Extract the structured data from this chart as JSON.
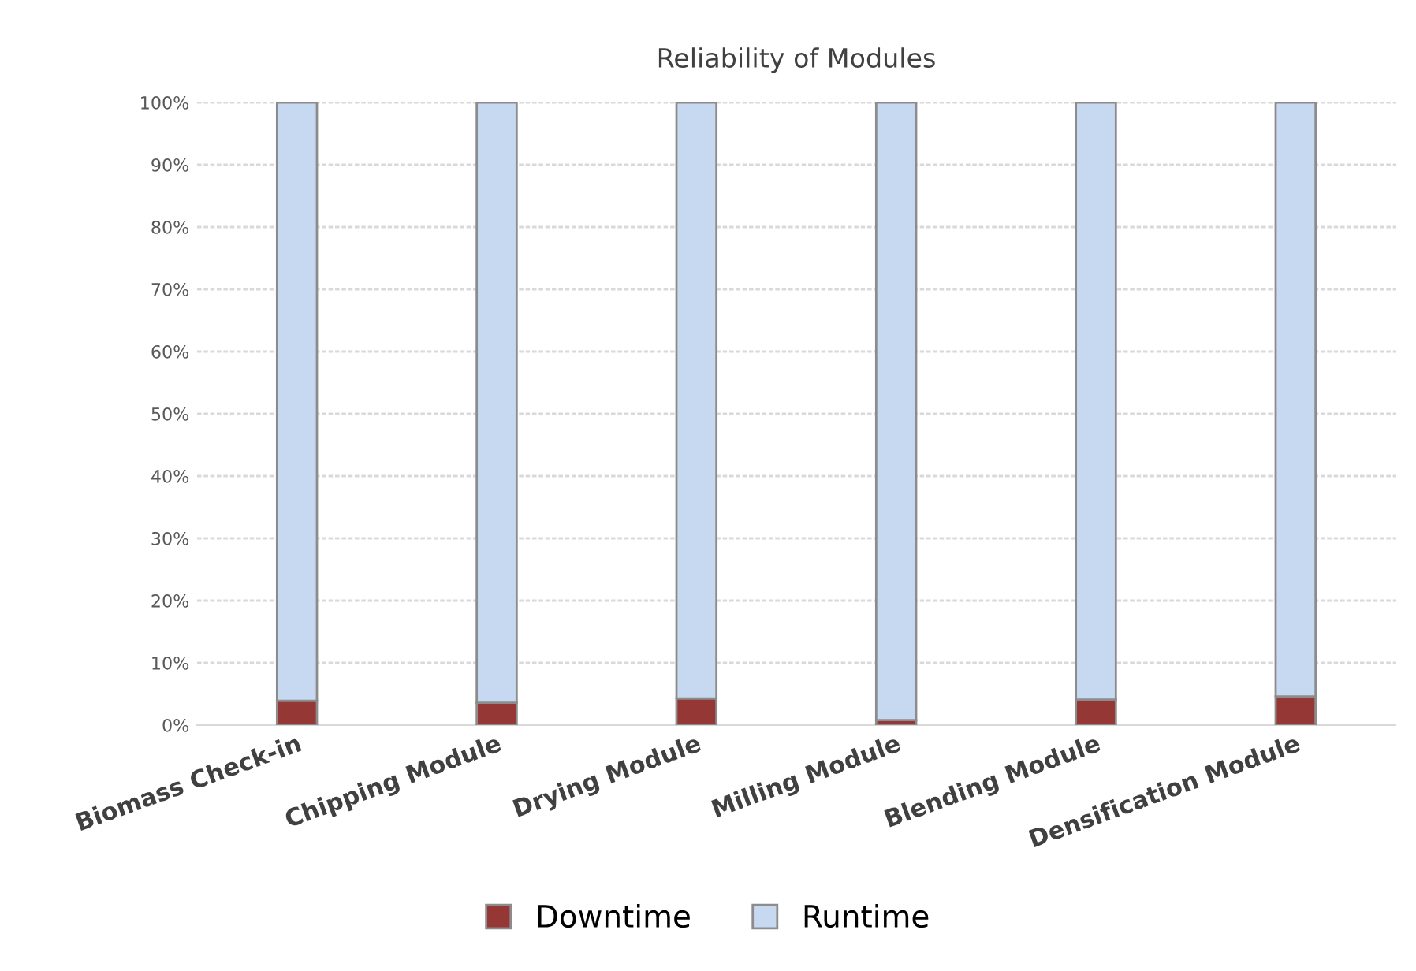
{
  "chart_data": {
    "type": "bar",
    "title": "Reliability of Modules",
    "stacked": true,
    "categories": [
      "Biomass Check-in",
      "Chipping Module",
      "Drying Module",
      "Milling Module",
      "Blending Module",
      "Densification Module"
    ],
    "series": [
      {
        "name": "Downtime",
        "color": "#953735",
        "values": [
          3.9,
          3.6,
          4.3,
          0.8,
          4.1,
          4.6
        ]
      },
      {
        "name": "Runtime",
        "color": "#c6d9f1",
        "values": [
          96.1,
          96.4,
          95.7,
          99.2,
          95.9,
          95.4
        ]
      }
    ],
    "ylim": [
      0,
      100
    ],
    "yticks": [
      {
        "value": 0,
        "label": "0%"
      },
      {
        "value": 10,
        "label": "10%"
      },
      {
        "value": 20,
        "label": "20%"
      },
      {
        "value": 30,
        "label": "30%"
      },
      {
        "value": 40,
        "label": "40%"
      },
      {
        "value": 50,
        "label": "50%"
      },
      {
        "value": 60,
        "label": "60%"
      },
      {
        "value": 70,
        "label": "70%"
      },
      {
        "value": 80,
        "label": "80%"
      },
      {
        "value": 90,
        "label": "90%"
      },
      {
        "value": 100,
        "label": "100%"
      }
    ],
    "grid": "y",
    "legend": "bottom"
  }
}
